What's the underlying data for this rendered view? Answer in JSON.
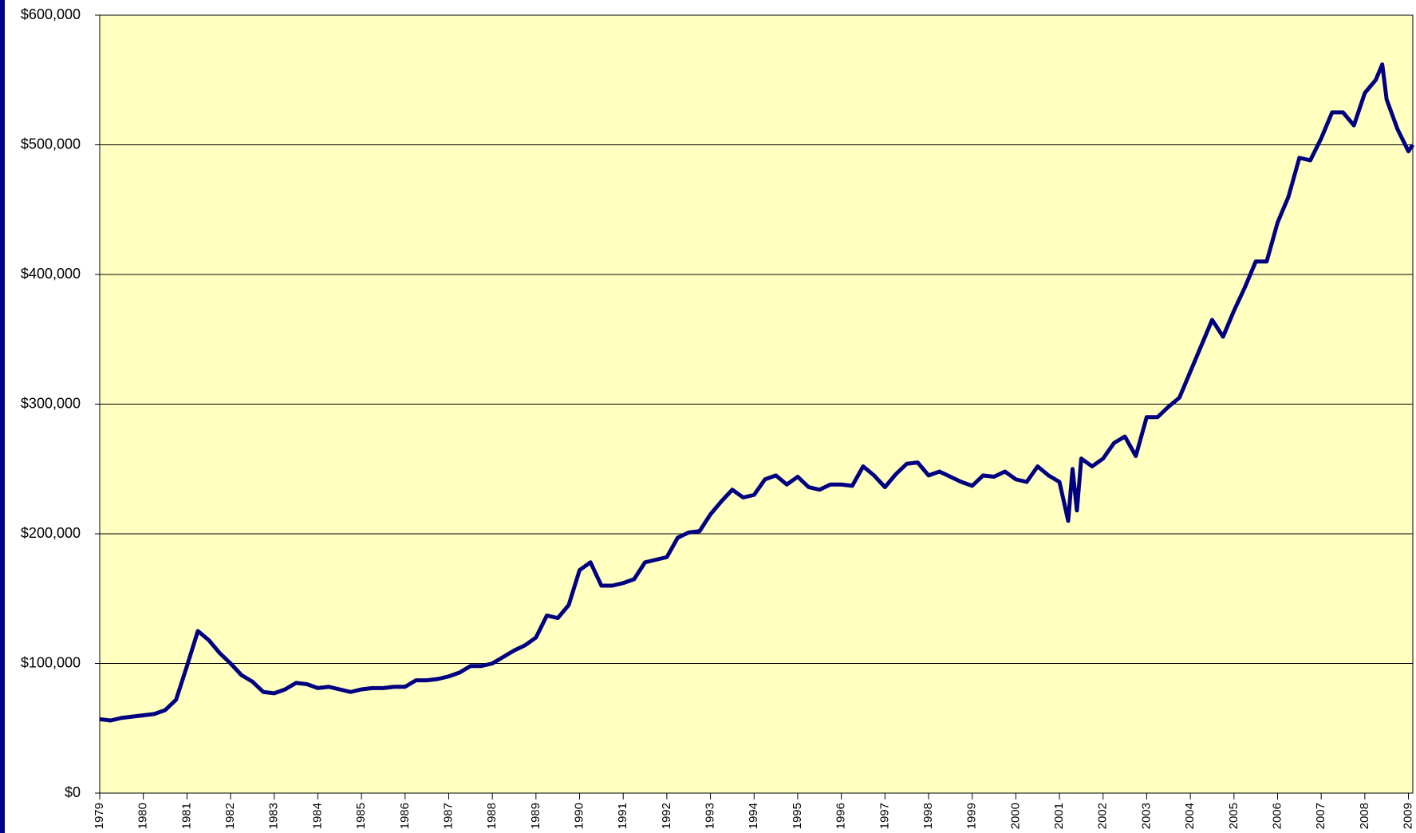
{
  "chart_data": {
    "type": "line",
    "x": [
      1979.0,
      1979.25,
      1979.5,
      1979.75,
      1980.0,
      1980.25,
      1980.5,
      1980.75,
      1981.0,
      1981.25,
      1981.5,
      1981.75,
      1982.0,
      1982.25,
      1982.5,
      1982.75,
      1983.0,
      1983.25,
      1983.5,
      1983.75,
      1984.0,
      1984.25,
      1984.5,
      1984.75,
      1985.0,
      1985.25,
      1985.5,
      1985.75,
      1986.0,
      1986.25,
      1986.5,
      1986.75,
      1987.0,
      1987.25,
      1987.5,
      1987.75,
      1988.0,
      1988.25,
      1988.5,
      1988.75,
      1989.0,
      1989.25,
      1989.5,
      1989.75,
      1990.0,
      1990.25,
      1990.5,
      1990.75,
      1991.0,
      1991.25,
      1991.5,
      1991.75,
      1992.0,
      1992.25,
      1992.5,
      1992.75,
      1993.0,
      1993.25,
      1993.5,
      1993.75,
      1994.0,
      1994.25,
      1994.5,
      1994.75,
      1995.0,
      1995.25,
      1995.5,
      1995.75,
      1996.0,
      1996.25,
      1996.5,
      1996.75,
      1997.0,
      1997.25,
      1997.5,
      1997.75,
      1998.0,
      1998.25,
      1998.5,
      1998.75,
      1999.0,
      1999.25,
      1999.5,
      1999.75,
      2000.0,
      2000.25,
      2000.5,
      2000.75,
      2001.0,
      2001.2,
      2001.3,
      2001.4,
      2001.5,
      2001.75,
      2002.0,
      2002.25,
      2002.5,
      2002.75,
      2003.0,
      2003.25,
      2003.5,
      2003.75,
      2004.0,
      2004.25,
      2004.5,
      2004.75,
      2005.0,
      2005.25,
      2005.5,
      2005.75,
      2006.0,
      2006.25,
      2006.5,
      2006.75,
      2007.0,
      2007.25,
      2007.5,
      2007.75,
      2008.0,
      2008.25,
      2008.4,
      2008.5,
      2008.75,
      2009.0,
      2009.1
    ],
    "series": [
      {
        "color": "#000080",
        "values": [
          57000,
          56000,
          58000,
          59000,
          60000,
          61000,
          64000,
          72000,
          98000,
          125000,
          118000,
          108000,
          100000,
          91000,
          86000,
          78000,
          77000,
          80000,
          85000,
          84000,
          81000,
          82000,
          80000,
          78000,
          80000,
          81000,
          81000,
          82000,
          82000,
          87000,
          87000,
          88000,
          90000,
          93000,
          98000,
          98000,
          100000,
          105000,
          110000,
          114000,
          120000,
          137000,
          135000,
          145000,
          172000,
          178000,
          160000,
          160000,
          162000,
          165000,
          178000,
          180000,
          182000,
          197000,
          201000,
          202000,
          215000,
          225000,
          234000,
          228000,
          230000,
          242000,
          245000,
          238000,
          244000,
          236000,
          234000,
          238000,
          238000,
          237000,
          252000,
          245000,
          236000,
          246000,
          254000,
          255000,
          245000,
          248000,
          244000,
          240000,
          237000,
          245000,
          244000,
          248000,
          242000,
          240000,
          252000,
          245000,
          240000,
          210000,
          250000,
          218000,
          258000,
          252000,
          258000,
          270000,
          275000,
          260000,
          290000,
          290000,
          298000,
          305000,
          325000,
          345000,
          365000,
          352000,
          372000,
          390000,
          410000,
          410000,
          440000,
          460000,
          490000,
          488000,
          505000,
          525000,
          525000,
          515000,
          540000,
          550000,
          562000,
          535000,
          512000,
          495000,
          500000
        ]
      }
    ],
    "xlim": [
      1979,
      2009.1
    ],
    "xticks": [
      1979,
      1980,
      1981,
      1982,
      1983,
      1984,
      1985,
      1986,
      1987,
      1988,
      1989,
      1990,
      1991,
      1992,
      1993,
      1994,
      1995,
      1996,
      1997,
      1998,
      1999,
      2000,
      2001,
      2002,
      2003,
      2004,
      2005,
      2006,
      2007,
      2008,
      2009
    ],
    "ylim": [
      0,
      600000
    ],
    "yticks": [
      {
        "value": 0,
        "label": "$0"
      },
      {
        "value": 100000,
        "label": "$100,000"
      },
      {
        "value": 200000,
        "label": "$200,000"
      },
      {
        "value": 300000,
        "label": "$300,000"
      },
      {
        "value": 400000,
        "label": "$400,000"
      },
      {
        "value": 500000,
        "label": "$500,000"
      },
      {
        "value": 600000,
        "label": "$600,000"
      }
    ],
    "grid": true,
    "background": "#ffffc0"
  }
}
